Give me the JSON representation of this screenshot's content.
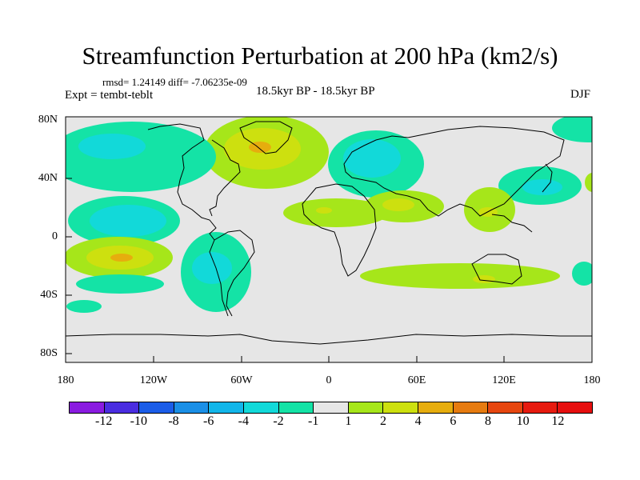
{
  "title": "Streamfunction Perturbation at 200 hPa (km2/s)",
  "stats_line": "rmsd= 1.24149 diff= -7.06235e-09",
  "experiment_label": "Expt = tembt-teblt",
  "period_label": "18.5kyr BP - 18.5kyr BP",
  "season_label": "DJF",
  "lat_ticks": [
    "80N",
    "40N",
    "0",
    "40S",
    "80S"
  ],
  "lon_ticks": [
    "180",
    "120W",
    "60W",
    "0",
    "60E",
    "120E",
    "180"
  ],
  "colorbar": {
    "labels": [
      "-12",
      "-10",
      "-8",
      "-6",
      "-4",
      "-2",
      "-1",
      "1",
      "2",
      "4",
      "6",
      "8",
      "10",
      "12"
    ],
    "colors": [
      "#8a1be0",
      "#4a2de0",
      "#1b5de8",
      "#1a8fe6",
      "#12b6ea",
      "#12d9d9",
      "#14e3a6",
      "#e6e6e6",
      "#a6e61a",
      "#cde00f",
      "#e6ad0e",
      "#e67b10",
      "#e6460f",
      "#e61a0f",
      "#e60f0f"
    ]
  }
}
